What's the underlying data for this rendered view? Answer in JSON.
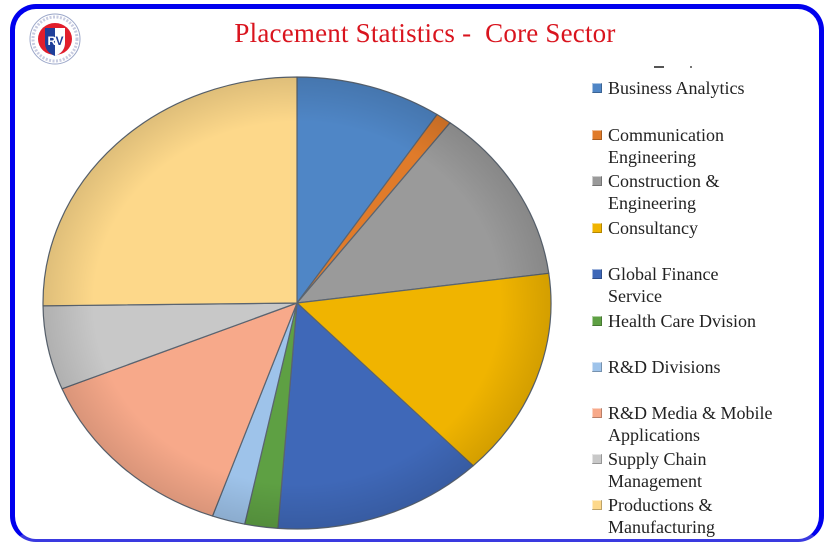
{
  "slide": {
    "title": "Placement Statistics -  Core Sector",
    "logo": {
      "text": "RV",
      "icon": "rv-institution-logo-icon"
    },
    "frame_color": "#0000ee",
    "title_color": "#d9141e"
  },
  "legend": {
    "items": [
      {
        "label": "Business Analytics",
        "color": "#4f86c6"
      },
      {
        "label": "Communication Engineering",
        "color": "#e07b2a"
      },
      {
        "label": "Construction & Engineering",
        "color": "#9a9a9a"
      },
      {
        "label": "Consultancy",
        "color": "#f0b400"
      },
      {
        "label": "Global Finance Service",
        "color": "#3f68b8"
      },
      {
        "label": "Health Care Dvision",
        "color": "#5ea043"
      },
      {
        "label": "R&D Divisions",
        "color": "#9ec3ea"
      },
      {
        "label": "R&D Media & Mobile Applications",
        "color": "#f7a98a"
      },
      {
        "label": "Supply Chain Management",
        "color": "#c8c8c8"
      },
      {
        "label": "Productions & Manufacturing",
        "color": "#fdd88a"
      }
    ]
  },
  "chart_data": {
    "type": "pie",
    "title": "Placement Statistics -  Core Sector",
    "categories": [
      "Business Analytics",
      "Communication Engineering",
      "Construction & Engineering",
      "Consultancy",
      "Global Finance Service",
      "Health Care Dvision",
      "R&D Divisions",
      "R&D Media & Mobile Applications",
      "Supply Chain Management",
      "Productions & Manufacturing"
    ],
    "values": [
      9.3,
      1.0,
      12.6,
      14.9,
      13.4,
      2.1,
      2.1,
      13.4,
      6.0,
      25.2
    ],
    "unit": "percent (estimated from slice angles)",
    "start_angle": "12 o'clock, clockwise",
    "legend_position": "right",
    "data_labels": false
  }
}
